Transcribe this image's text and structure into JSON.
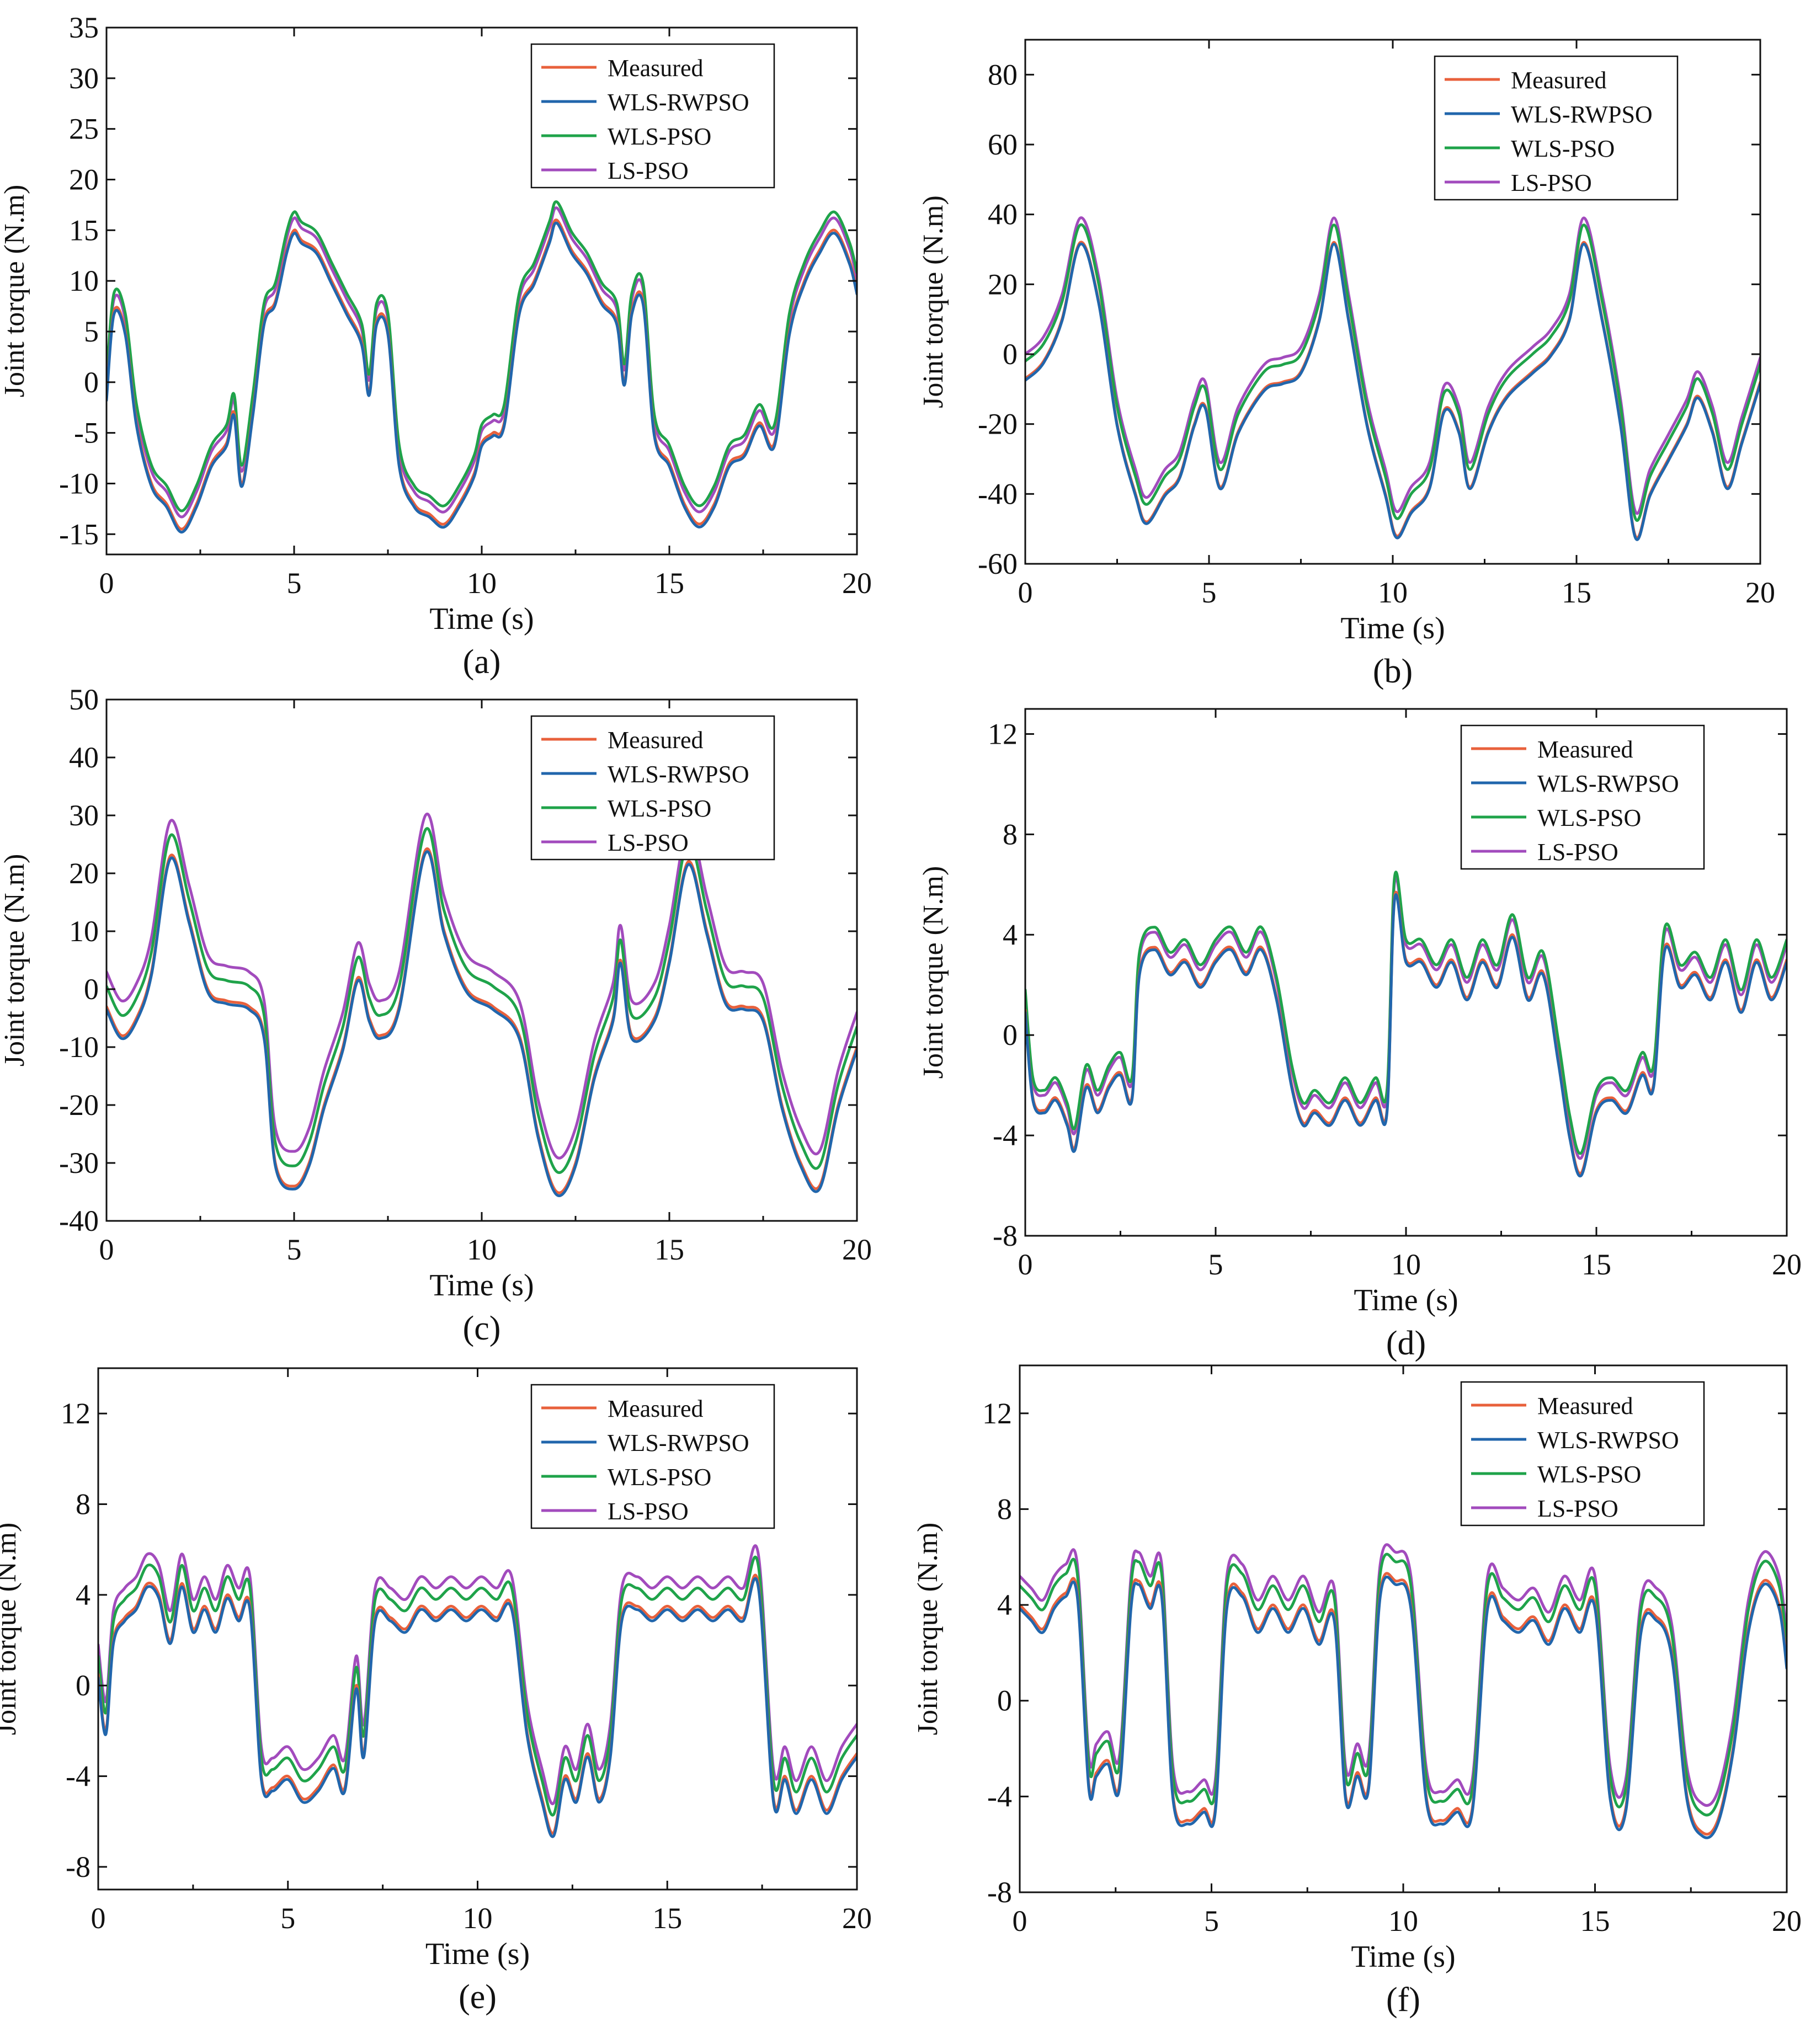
{
  "colors": {
    "Measured": "#e8613c",
    "WLS-RWPSO": "#2166ac",
    "WLS-PSO": "#1fa34a",
    "LS-PSO": "#a24bbd"
  },
  "chart_data": [
    {
      "type": "line",
      "panel_label": "(a)",
      "xlabel": "Time (s)",
      "ylabel": "Joint torque (N.m)",
      "xlim": [
        0,
        20
      ],
      "ylim": [
        -17,
        35
      ],
      "xticks": [
        0,
        5,
        10,
        15,
        20
      ],
      "yticks": [
        -15,
        -10,
        -5,
        0,
        5,
        10,
        15,
        20,
        25,
        30,
        35
      ],
      "legend": [
        "Measured",
        "WLS-RWPSO",
        "WLS-PSO",
        "LS-PSO"
      ],
      "legend_position": "top-right",
      "series_offsets": {
        "Measured": 0,
        "WLS-RWPSO": -0.3,
        "WLS-PSO": 1.8,
        "LS-PSO": 1.2
      },
      "x": [
        0,
        0.2,
        0.5,
        0.8,
        1.2,
        1.6,
        2.0,
        2.4,
        2.8,
        3.2,
        3.4,
        3.6,
        3.9,
        4.2,
        4.5,
        4.8,
        5.0,
        5.2,
        5.6,
        6.0,
        6.4,
        6.8,
        7.0,
        7.2,
        7.5,
        7.8,
        8.2,
        8.6,
        9.0,
        9.4,
        9.8,
        10.0,
        10.3,
        10.6,
        11.0,
        11.4,
        11.8,
        12.0,
        12.4,
        12.8,
        13.2,
        13.6,
        13.8,
        14.0,
        14.3,
        14.6,
        15.0,
        15.4,
        15.8,
        16.2,
        16.6,
        17.0,
        17.4,
        17.8,
        18.2,
        18.6,
        19.0,
        19.4,
        19.8,
        20.0
      ],
      "y": [
        -1.5,
        7,
        5,
        -4,
        -10,
        -12,
        -14.5,
        -12,
        -8,
        -6,
        -3,
        -10,
        -3,
        6,
        8,
        13,
        15,
        14,
        13,
        10,
        7,
        4,
        -1,
        6,
        5,
        -8,
        -12,
        -13,
        -14,
        -12,
        -9,
        -6,
        -5,
        -4,
        7,
        10,
        14,
        16,
        13,
        11,
        8,
        6,
        0,
        7,
        8,
        -5,
        -8,
        -12,
        -14,
        -12,
        -8,
        -7,
        -4,
        -6,
        5,
        10,
        13,
        15,
        12,
        9
      ]
    },
    {
      "type": "line",
      "panel_label": "(b)",
      "xlabel": "Time (s)",
      "ylabel": "Joint torque (N.m)",
      "xlim": [
        0,
        20
      ],
      "ylim": [
        -60,
        90
      ],
      "xticks": [
        0,
        5,
        10,
        15,
        20
      ],
      "yticks": [
        -60,
        -40,
        -20,
        0,
        20,
        40,
        60,
        80
      ],
      "legend": [
        "Measured",
        "WLS-RWPSO",
        "WLS-PSO",
        "LS-PSO"
      ],
      "legend_position": "top-right",
      "series_offsets": {
        "Measured": 0,
        "WLS-RWPSO": -0.5,
        "WLS-PSO": 5,
        "LS-PSO": 7
      },
      "x": [
        0,
        0.5,
        1.0,
        1.5,
        2.0,
        2.5,
        3.0,
        3.3,
        3.8,
        4.2,
        4.6,
        4.9,
        5.3,
        5.8,
        6.5,
        7.0,
        7.5,
        8.0,
        8.4,
        8.8,
        9.3,
        9.8,
        10.1,
        10.5,
        11.0,
        11.4,
        11.8,
        12.1,
        12.6,
        13.1,
        13.8,
        14.3,
        14.8,
        15.2,
        15.7,
        16.2,
        16.6,
        17.0,
        17.5,
        18.0,
        18.3,
        18.7,
        19.1,
        19.5,
        20.0
      ],
      "y": [
        -7,
        -2,
        10,
        32,
        15,
        -20,
        -40,
        -48,
        -40,
        -35,
        -20,
        -15,
        -38,
        -22,
        -10,
        -8,
        -5,
        10,
        32,
        10,
        -20,
        -40,
        -52,
        -45,
        -38,
        -16,
        -22,
        -38,
        -22,
        -12,
        -5,
        0,
        10,
        32,
        10,
        -20,
        -52,
        -40,
        -30,
        -20,
        -12,
        -22,
        -38,
        -25,
        -8
      ]
    },
    {
      "type": "line",
      "panel_label": "(c)",
      "xlabel": "Time (s)",
      "ylabel": "Joint torque (N.m)",
      "xlim": [
        0,
        20
      ],
      "ylim": [
        -40,
        50
      ],
      "xticks": [
        0,
        5,
        10,
        15,
        20
      ],
      "yticks": [
        -40,
        -30,
        -20,
        -10,
        0,
        10,
        20,
        30,
        40,
        50
      ],
      "legend": [
        "Measured",
        "WLS-RWPSO",
        "WLS-PSO",
        "LS-PSO"
      ],
      "legend_position": "top-right",
      "series_offsets": {
        "Measured": 0,
        "WLS-RWPSO": -0.5,
        "WLS-PSO": 3.5,
        "LS-PSO": 6
      },
      "x": [
        0,
        0.4,
        0.8,
        1.2,
        1.7,
        2.2,
        2.7,
        3.2,
        3.8,
        4.2,
        4.5,
        5.0,
        5.4,
        5.8,
        6.3,
        6.7,
        7.0,
        7.3,
        7.8,
        8.5,
        9.0,
        9.6,
        10.3,
        11.0,
        11.5,
        12.0,
        12.5,
        13.0,
        13.5,
        13.7,
        14.0,
        14.6,
        15.0,
        15.5,
        16.0,
        16.5,
        17.0,
        17.5,
        18.0,
        18.5,
        19.0,
        19.5,
        20.0
      ],
      "y": [
        -3,
        -8,
        -5,
        3,
        23,
        12,
        0,
        -2,
        -3,
        -8,
        -30,
        -34,
        -30,
        -20,
        -10,
        2,
        -5,
        -8,
        -3,
        24,
        10,
        0,
        -3,
        -8,
        -25,
        -35,
        -30,
        -15,
        -5,
        5,
        -8,
        -5,
        5,
        22,
        10,
        -2,
        -3,
        -5,
        -20,
        -30,
        -34,
        -20,
        -10
      ]
    },
    {
      "type": "line",
      "panel_label": "(d)",
      "xlabel": "Time (s)",
      "ylabel": "Joint torque (N.m)",
      "xlim": [
        0,
        20
      ],
      "ylim": [
        -8,
        13
      ],
      "xticks": [
        0,
        5,
        10,
        15,
        20
      ],
      "yticks": [
        -8,
        -4,
        0,
        4,
        8,
        12
      ],
      "legend": [
        "Measured",
        "WLS-RWPSO",
        "WLS-PSO",
        "LS-PSO"
      ],
      "legend_position": "top-right",
      "series_offsets": {
        "Measured": 0,
        "WLS-RWPSO": -0.1,
        "WLS-PSO": 0.8,
        "LS-PSO": 0.6
      },
      "x": [
        0,
        0.2,
        0.5,
        0.8,
        1.1,
        1.3,
        1.6,
        1.9,
        2.2,
        2.5,
        2.8,
        3.0,
        3.4,
        3.8,
        4.2,
        4.6,
        5.0,
        5.4,
        5.8,
        6.2,
        6.6,
        7.0,
        7.3,
        7.6,
        8.0,
        8.4,
        8.8,
        9.2,
        9.5,
        9.7,
        10.0,
        10.4,
        10.8,
        11.2,
        11.6,
        12.0,
        12.4,
        12.8,
        13.2,
        13.6,
        14.0,
        14.3,
        14.6,
        15.0,
        15.4,
        15.8,
        16.2,
        16.5,
        16.8,
        17.2,
        17.6,
        18.0,
        18.4,
        18.8,
        19.2,
        19.6,
        20.0
      ],
      "y": [
        1,
        -2.5,
        -3,
        -2.5,
        -3.5,
        -4.5,
        -2,
        -3,
        -2,
        -1.5,
        -2.5,
        2.5,
        3.5,
        2.5,
        3,
        2,
        3,
        3.5,
        2.5,
        3.5,
        1.5,
        -2,
        -3.5,
        -3,
        -3.5,
        -2.5,
        -3.5,
        -2.5,
        -3,
        5.5,
        3,
        3,
        2,
        3,
        1.5,
        3,
        2,
        4,
        1.5,
        2.5,
        -1,
        -4,
        -5.5,
        -3,
        -2.5,
        -3,
        -1.5,
        -2,
        3.5,
        2,
        2.5,
        1.5,
        3,
        1,
        3,
        1.5,
        3
      ]
    },
    {
      "type": "line",
      "panel_label": "(e)",
      "xlabel": "Time (s)",
      "ylabel": "Joint torque (N.m)",
      "xlim": [
        0,
        20
      ],
      "ylim": [
        -9,
        14
      ],
      "xticks": [
        0,
        5,
        10,
        15,
        20
      ],
      "yticks": [
        -8,
        -4,
        0,
        4,
        8,
        12
      ],
      "legend": [
        "Measured",
        "WLS-RWPSO",
        "WLS-PSO",
        "LS-PSO"
      ],
      "legend_position": "top-right",
      "series_offsets": {
        "Measured": 0,
        "WLS-RWPSO": -0.15,
        "WLS-PSO": 0.8,
        "LS-PSO": 1.3
      },
      "x": [
        0,
        0.2,
        0.4,
        0.7,
        1.0,
        1.3,
        1.6,
        1.9,
        2.2,
        2.5,
        2.8,
        3.1,
        3.4,
        3.7,
        4.0,
        4.3,
        4.6,
        5.0,
        5.4,
        5.8,
        6.2,
        6.5,
        6.8,
        7.0,
        7.3,
        7.7,
        8.1,
        8.5,
        8.9,
        9.3,
        9.7,
        10.1,
        10.5,
        10.9,
        11.3,
        11.7,
        12.0,
        12.3,
        12.6,
        12.9,
        13.2,
        13.5,
        13.8,
        14.2,
        14.6,
        15.0,
        15.4,
        15.8,
        16.2,
        16.6,
        17.0,
        17.4,
        17.8,
        18.1,
        18.4,
        18.8,
        19.2,
        19.6,
        20.0
      ],
      "y": [
        0.5,
        -2,
        2,
        3,
        3.5,
        4.5,
        4,
        2,
        4.5,
        2.5,
        3.5,
        2.5,
        4,
        3,
        3.5,
        -4,
        -4.5,
        -4,
        -5,
        -4.5,
        -3.5,
        -4.5,
        0,
        -3,
        3,
        3,
        2.5,
        3.5,
        3,
        3.5,
        3,
        3.5,
        3,
        3.5,
        -2,
        -5,
        -6.5,
        -4,
        -5,
        -3,
        -5,
        -3,
        3,
        3.5,
        3,
        3.5,
        3,
        3.5,
        3,
        3.5,
        3,
        4.5,
        -5,
        -4,
        -5.5,
        -4,
        -5.5,
        -4,
        -3
      ]
    },
    {
      "type": "line",
      "panel_label": "(f)",
      "xlabel": "Time (s)",
      "ylabel": "Joint torque (N.m)",
      "xlim": [
        0,
        20
      ],
      "ylim": [
        -8,
        14
      ],
      "xticks": [
        0,
        5,
        10,
        15,
        20
      ],
      "yticks": [
        -8,
        -4,
        0,
        4,
        8,
        12
      ],
      "legend": [
        "Measured",
        "WLS-RWPSO",
        "WLS-PSO",
        "LS-PSO"
      ],
      "legend_position": "top-right",
      "series_offsets": {
        "Measured": 0,
        "WLS-RWPSO": -0.15,
        "WLS-PSO": 0.8,
        "LS-PSO": 1.2
      },
      "x": [
        0,
        0.3,
        0.6,
        0.9,
        1.2,
        1.5,
        1.8,
        2.0,
        2.3,
        2.6,
        2.9,
        3.1,
        3.4,
        3.7,
        4.0,
        4.4,
        4.8,
        5.1,
        5.4,
        5.8,
        6.2,
        6.6,
        7.0,
        7.4,
        7.8,
        8.2,
        8.5,
        8.8,
        9.1,
        9.4,
        9.8,
        10.2,
        10.6,
        11.0,
        11.4,
        11.8,
        12.2,
        12.6,
        13.0,
        13.4,
        13.8,
        14.2,
        14.6,
        15.0,
        15.4,
        15.8,
        16.2,
        16.6,
        17.0,
        17.4,
        17.8,
        18.2,
        18.6,
        19.0,
        19.4,
        19.8,
        20.0
      ],
      "y": [
        4,
        3.5,
        3,
        4,
        4.5,
        4.5,
        -3.5,
        -3,
        -2.5,
        -3.5,
        4,
        5,
        4,
        4.5,
        -4,
        -5,
        -4.5,
        -4.5,
        4,
        4.5,
        3,
        4,
        3,
        4,
        2.5,
        3.5,
        -4,
        -3,
        -3.5,
        4.5,
        5,
        4,
        -4,
        -5,
        -4.5,
        -4.5,
        4,
        3.5,
        3,
        3.5,
        2.5,
        4,
        3,
        4,
        -4,
        -4.5,
        3,
        3.5,
        2,
        -4,
        -5.5,
        -5,
        -2,
        3,
        5,
        4,
        1.5
      ]
    }
  ]
}
